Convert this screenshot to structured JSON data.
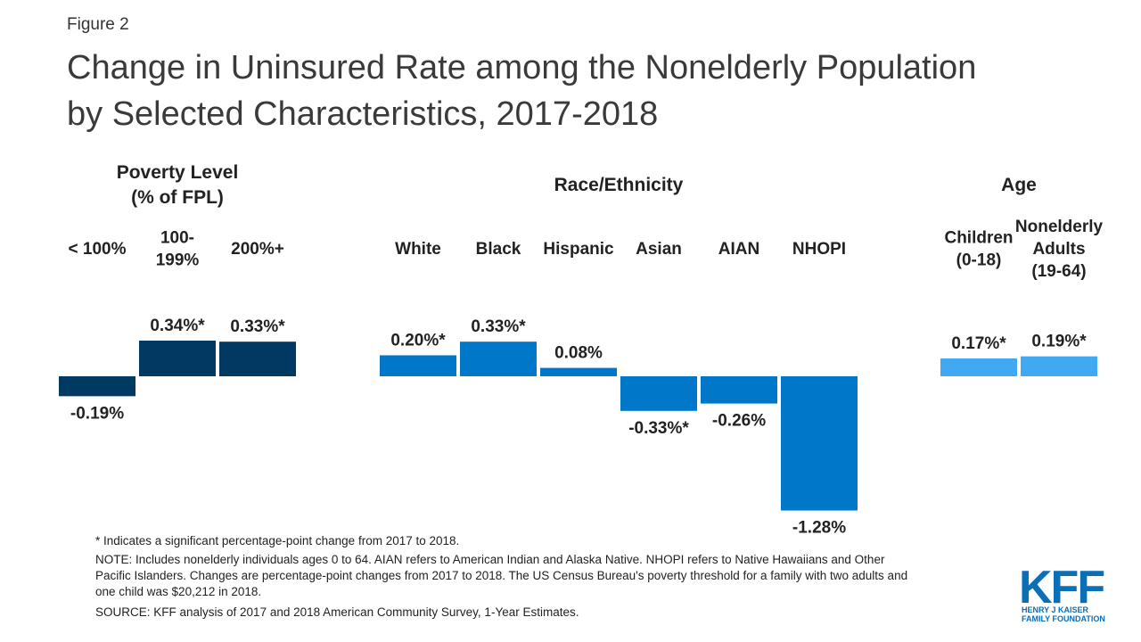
{
  "figure_label": "Figure 2",
  "title": "Change in Uninsured Rate among the Nonelderly Population\nby Selected Characteristics, 2017-2018",
  "chart_data": [
    {
      "type": "bar",
      "title": "Poverty Level\n(% of FPL)",
      "categories": [
        "< 100%",
        "100-\n199%",
        "200%+"
      ],
      "values": [
        -0.19,
        0.34,
        0.33
      ],
      "value_labels": [
        "-0.19%",
        "0.34%*",
        "0.33%*"
      ],
      "color": "#003a63"
    },
    {
      "type": "bar",
      "title": "Race/Ethnicity",
      "categories": [
        "White",
        "Black",
        "Hispanic",
        "Asian",
        "AIAN",
        "NHOPI"
      ],
      "values": [
        0.2,
        0.33,
        0.08,
        -0.33,
        -0.26,
        -1.28
      ],
      "value_labels": [
        "0.20%*",
        "0.33%*",
        "0.08%",
        "-0.33%*",
        "-0.26%",
        "-1.28%"
      ],
      "color": "#0077c8"
    },
    {
      "type": "bar",
      "title": "Age",
      "categories": [
        "Children\n(0-18)",
        "Nonelderly\nAdults\n(19-64)"
      ],
      "values": [
        0.17,
        0.19
      ],
      "value_labels": [
        "0.17%*",
        "0.19%*"
      ],
      "color": "#41a8f2"
    }
  ],
  "notes": [
    "* Indicates a significant percentage-point change from 2017 to 2018.",
    "NOTE: Includes nonelderly individuals ages 0 to 64. AIAN refers to American Indian and Alaska Native. NHOPI refers to Native Hawaiians and Other\nPacific Islanders. Changes are percentage-point changes from 2017 to 2018. The US Census Bureau's poverty threshold for a family with two adults and\none child was $20,212 in 2018.",
    "SOURCE: KFF analysis of 2017 and 2018 American Community Survey, 1-Year Estimates."
  ],
  "logo": {
    "name": "KFF",
    "tagline": "HENRY J KAISER\nFAMILY FOUNDATION"
  }
}
